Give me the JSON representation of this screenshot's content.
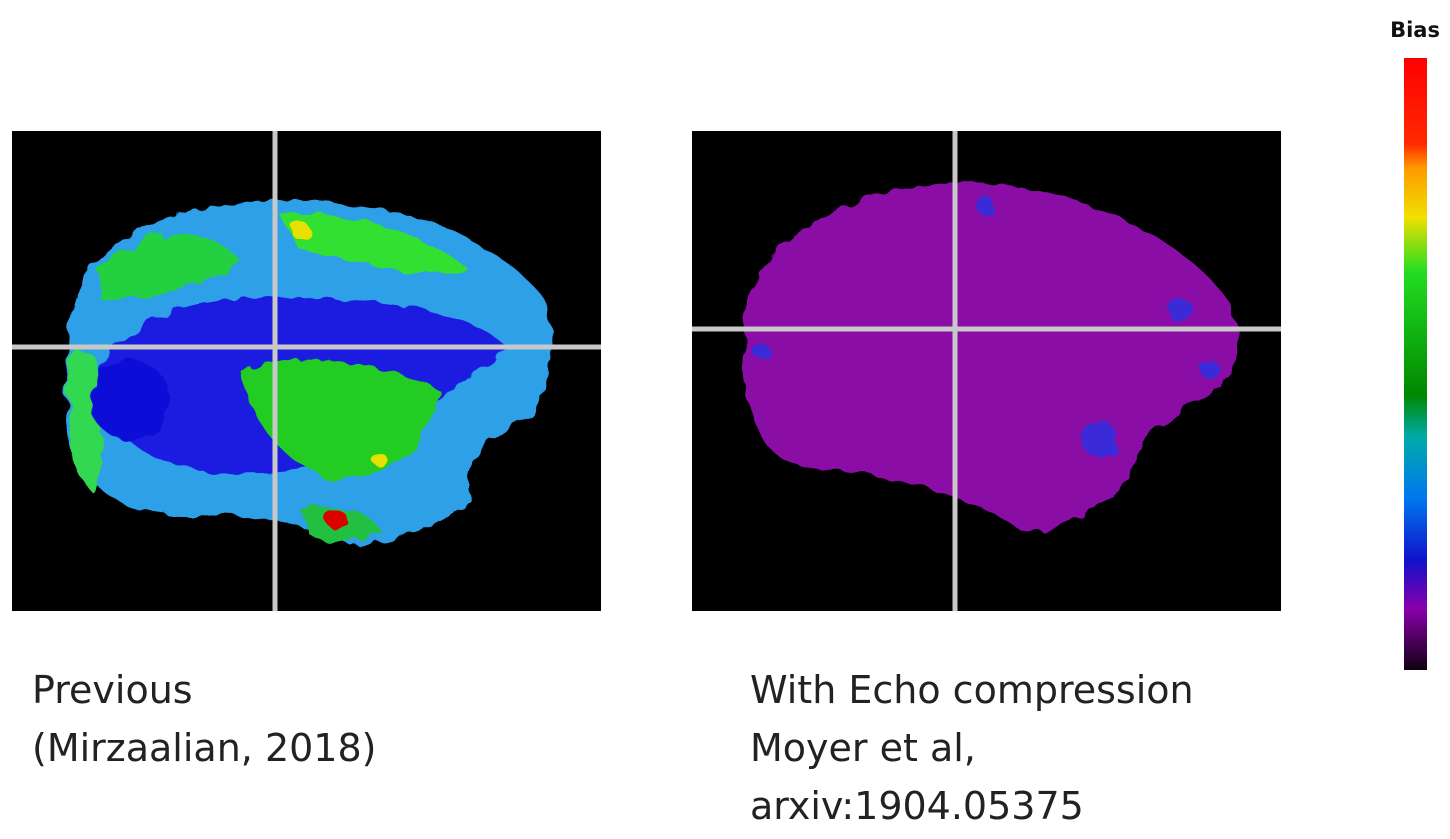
{
  "colorbar": {
    "title": "Bias"
  },
  "panels": [
    {
      "caption_lines": [
        "Previous",
        "(Mirzaalian, 2018)"
      ]
    },
    {
      "caption_lines": [
        "With Echo compression",
        "Moyer et al,",
        "arxiv:1904.05375"
      ]
    }
  ]
}
